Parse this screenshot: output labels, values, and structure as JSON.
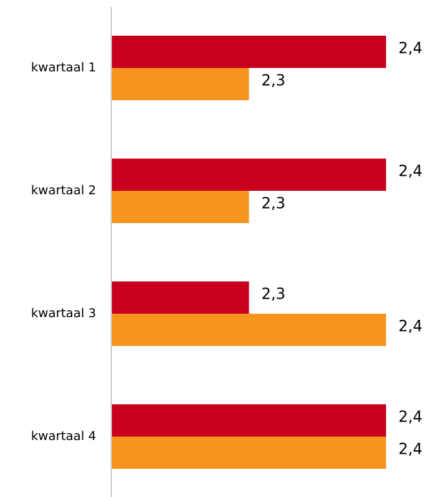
{
  "chart_data": {
    "type": "bar",
    "orientation": "horizontal",
    "categories": [
      "kwartaal 1",
      "kwartaal 2",
      "kwartaal 3",
      "kwartaal 4"
    ],
    "series": [
      {
        "color": "#c8001e",
        "values": [
          2.4,
          2.4,
          2.3,
          2.4
        ],
        "value_labels": [
          "2,4",
          "2,4",
          "2,3",
          "2,4"
        ]
      },
      {
        "color": "#f7941d",
        "values": [
          2.3,
          2.3,
          2.4,
          2.4
        ],
        "value_labels": [
          "2,3",
          "2,3",
          "2,4",
          "2,4"
        ]
      }
    ],
    "xlim": [
      2.2,
      2.4
    ]
  }
}
